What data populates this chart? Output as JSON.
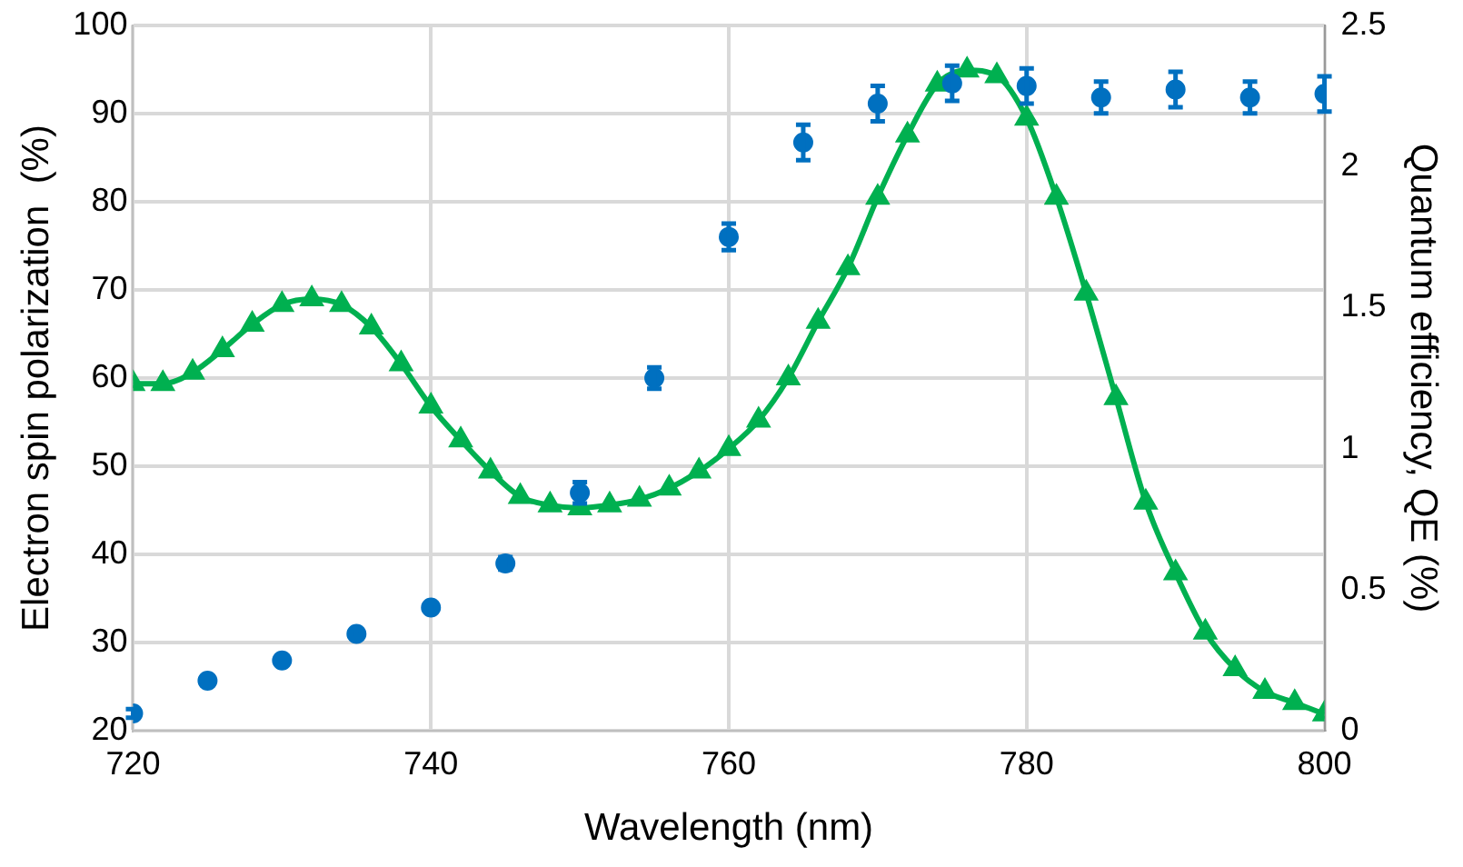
{
  "chart_data": {
    "type": "scatter",
    "xlabel": "Wavelength (nm)",
    "ylabel": "Electron spin polarization  (%)",
    "y2label": "Quantum efficiency, QE (%)",
    "xlim": [
      720,
      800
    ],
    "xticks": [
      720,
      740,
      760,
      780,
      800
    ],
    "ylim": [
      20,
      100
    ],
    "yticks": [
      20,
      30,
      40,
      50,
      60,
      70,
      80,
      90,
      100
    ],
    "y2lim": [
      0,
      2.5
    ],
    "y2ticks": [
      0,
      0.5,
      1,
      1.5,
      2,
      2.5
    ],
    "grid": true,
    "legend": false,
    "series": [
      {
        "color": "#0070c0",
        "marker": "circle",
        "x": [
          720,
          725,
          730,
          735,
          740,
          745,
          750,
          755,
          760,
          765,
          770,
          775,
          780,
          785,
          790,
          795,
          800
        ],
        "values": [
          22,
          25.7,
          28,
          31,
          34,
          39,
          47,
          60,
          76,
          86.7,
          91.1,
          93.4,
          93.1,
          91.8,
          92.7,
          91.8,
          92.2
        ],
        "errors": [
          0.5,
          0.5,
          0.5,
          0.5,
          0.5,
          0.7,
          1.2,
          1.2,
          1.5,
          2,
          2,
          2,
          2,
          1.8,
          2,
          1.8,
          2
        ]
      },
      {
        "type": "line",
        "axis": "y2",
        "color": "#00b050",
        "marker": "triangle",
        "line_style": "solid",
        "x": [
          720,
          722,
          724,
          726,
          728,
          730,
          732,
          734,
          736,
          738,
          740,
          742,
          744,
          746,
          748,
          750,
          752,
          754,
          756,
          758,
          760,
          762,
          764,
          766,
          768,
          770,
          772,
          774,
          776,
          778,
          780,
          782,
          784,
          786,
          788,
          790,
          792,
          794,
          796,
          798,
          800
        ],
        "values": [
          1.23,
          1.23,
          1.27,
          1.35,
          1.44,
          1.51,
          1.53,
          1.51,
          1.43,
          1.3,
          1.15,
          1.03,
          0.92,
          0.83,
          0.8,
          0.79,
          0.8,
          0.82,
          0.86,
          0.92,
          1.0,
          1.1,
          1.25,
          1.45,
          1.64,
          1.89,
          2.11,
          2.29,
          2.34,
          2.32,
          2.17,
          1.89,
          1.55,
          1.18,
          0.81,
          0.56,
          0.35,
          0.22,
          0.14,
          0.1,
          0.06
        ]
      }
    ]
  }
}
